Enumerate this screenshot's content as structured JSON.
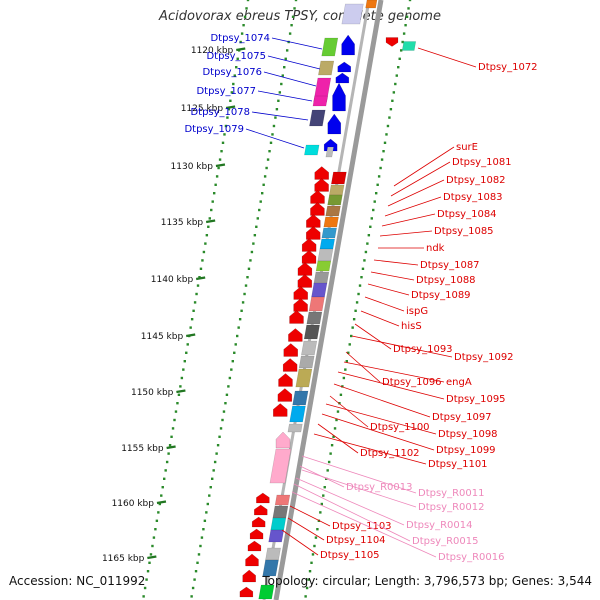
{
  "title": "Acidovorax ebreus TPSY, complete genome",
  "accession": "Accession: NC_011992",
  "summary": "Topology: circular; Length: 3,796,573 bp; Genes: 3,544",
  "colors": {
    "left_labels": "#0000cc",
    "right_labels": "#dd0000",
    "rna_labels": "#ee88bb",
    "backbone": "#9a9a9a",
    "tick_dots": "#2a8a2a",
    "tick_major": "#227722"
  },
  "scale": {
    "ticks": [
      {
        "label": "1120 kbp",
        "kbp": 1120
      },
      {
        "label": "1125 kbp",
        "kbp": 1125
      },
      {
        "label": "1130 kbp",
        "kbp": 1130
      },
      {
        "label": "1135 kbp",
        "kbp": 1135
      },
      {
        "label": "1140 kbp",
        "kbp": 1140
      },
      {
        "label": "1145 kbp",
        "kbp": 1145
      },
      {
        "label": "1150 kbp",
        "kbp": 1150
      },
      {
        "label": "1155 kbp",
        "kbp": 1155
      },
      {
        "label": "1160 kbp",
        "kbp": 1160
      },
      {
        "label": "1165 kbp",
        "kbp": 1165
      }
    ]
  },
  "left_genes": [
    {
      "name": "Dtpsy_1074",
      "color": "#66cc33"
    },
    {
      "name": "Dtpsy_1075",
      "color": "#bbaa66"
    },
    {
      "name": "Dtpsy_1076",
      "color": "#ee22aa"
    },
    {
      "name": "Dtpsy_1077",
      "color": "#ee22aa"
    },
    {
      "name": "Dtpsy_1078",
      "color": "#444477"
    },
    {
      "name": "Dtpsy_1079",
      "color": "#00dddd"
    }
  ],
  "right_genes": [
    {
      "name": "Dtpsy_1072"
    },
    {
      "name": "surE"
    },
    {
      "name": "Dtpsy_1081"
    },
    {
      "name": "Dtpsy_1082"
    },
    {
      "name": "Dtpsy_1083"
    },
    {
      "name": "Dtpsy_1084"
    },
    {
      "name": "Dtpsy_1085"
    },
    {
      "name": "ndk"
    },
    {
      "name": "Dtpsy_1087"
    },
    {
      "name": "Dtpsy_1088"
    },
    {
      "name": "Dtpsy_1089"
    },
    {
      "name": "ispG"
    },
    {
      "name": "hisS"
    },
    {
      "name": "Dtpsy_1093"
    },
    {
      "name": "Dtpsy_1092"
    },
    {
      "name": "Dtpsy_1096"
    },
    {
      "name": "engA"
    },
    {
      "name": "Dtpsy_1095"
    },
    {
      "name": "Dtpsy_1097"
    },
    {
      "name": "Dtpsy_1100"
    },
    {
      "name": "Dtpsy_1098"
    },
    {
      "name": "Dtpsy_1099"
    },
    {
      "name": "Dtpsy_1102"
    },
    {
      "name": "Dtpsy_1101"
    },
    {
      "name": "Dtpsy_1103"
    },
    {
      "name": "Dtpsy_1104"
    },
    {
      "name": "Dtpsy_1105"
    }
  ],
  "rna_genes": [
    {
      "name": "Dtpsy_R0013"
    },
    {
      "name": "Dtpsy_R0011"
    },
    {
      "name": "Dtpsy_R0012"
    },
    {
      "name": "Dtpsy_R0014"
    },
    {
      "name": "Dtpsy_R0015"
    },
    {
      "name": "Dtpsy_R0016"
    }
  ]
}
